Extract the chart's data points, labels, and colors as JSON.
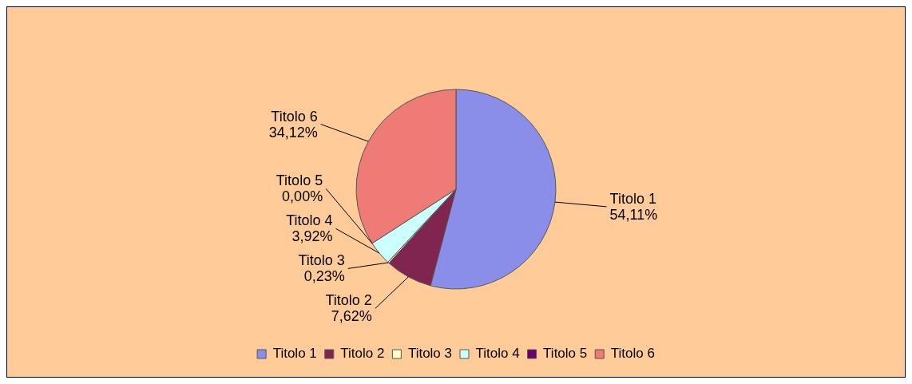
{
  "chart_data": {
    "type": "pie",
    "categories": [
      "Titolo 1",
      "Titolo 2",
      "Titolo 3",
      "Titolo 4",
      "Titolo 5",
      "Titolo 6"
    ],
    "values": [
      54.11,
      7.62,
      0.23,
      3.92,
      0.0,
      34.12
    ],
    "value_labels": [
      "54,11%",
      "7,62%",
      "0,23%",
      "3,92%",
      "0,00%",
      "34,12%"
    ],
    "colors": [
      "#8b8ee8",
      "#7f2550",
      "#ffffcc",
      "#ccffff",
      "#660066",
      "#ef7b76"
    ],
    "legend": "bottom"
  }
}
